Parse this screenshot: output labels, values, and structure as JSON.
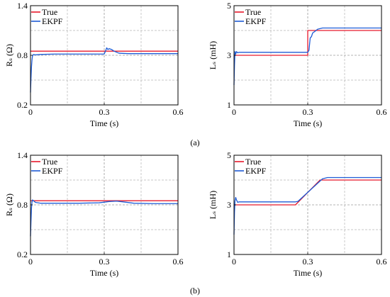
{
  "chart_data": [
    {
      "type": "line",
      "row": "a",
      "xlabel": "Time (s)",
      "ylabel": "Rₛ (Ω)",
      "xlim": [
        0,
        0.6
      ],
      "ylim": [
        0.2,
        1.4
      ],
      "xticks": [
        "0",
        "0.3",
        "0.6"
      ],
      "yticks": [
        "0.2",
        "0.8",
        "1.4"
      ],
      "grid": true,
      "legend_position": "top-left",
      "series": [
        {
          "name": "True",
          "color": "#e8192c",
          "x": [
            0,
            0.6
          ],
          "y": [
            0.85,
            0.85
          ]
        },
        {
          "name": "EKPF",
          "color": "#1f5cd6",
          "x": [
            0,
            0.002,
            0.004,
            0.006,
            0.008,
            0.012,
            0.02,
            0.04,
            0.1,
            0.2,
            0.3,
            0.305,
            0.31,
            0.315,
            0.32,
            0.33,
            0.34,
            0.36,
            0.4,
            0.5,
            0.6
          ],
          "y": [
            0.35,
            0.52,
            0.66,
            0.74,
            0.79,
            0.81,
            0.805,
            0.81,
            0.815,
            0.815,
            0.815,
            0.85,
            0.89,
            0.87,
            0.88,
            0.87,
            0.85,
            0.825,
            0.82,
            0.82,
            0.82
          ]
        }
      ]
    },
    {
      "type": "line",
      "row": "a",
      "xlabel": "Time (s)",
      "ylabel": "Lₛ (mH)",
      "xlim": [
        0,
        0.6
      ],
      "ylim": [
        1,
        5
      ],
      "xticks": [
        "0",
        "0.3",
        "0.6"
      ],
      "yticks": [
        "1",
        "3",
        "5"
      ],
      "grid": true,
      "legend_position": "top-left",
      "series": [
        {
          "name": "True",
          "color": "#e8192c",
          "x": [
            0,
            0.3,
            0.3,
            0.6
          ],
          "y": [
            3.0,
            3.0,
            4.0,
            4.0
          ]
        },
        {
          "name": "EKPF",
          "color": "#1f5cd6",
          "x": [
            0,
            0.002,
            0.004,
            0.007,
            0.01,
            0.015,
            0.02,
            0.04,
            0.1,
            0.2,
            0.3,
            0.305,
            0.31,
            0.315,
            0.32,
            0.33,
            0.34,
            0.36,
            0.4,
            0.5,
            0.6
          ],
          "y": [
            1.8,
            2.6,
            3.15,
            3.05,
            3.15,
            3.1,
            3.12,
            3.12,
            3.12,
            3.12,
            3.12,
            3.2,
            3.7,
            3.75,
            3.9,
            3.97,
            4.05,
            4.1,
            4.1,
            4.1,
            4.1
          ]
        }
      ]
    },
    {
      "type": "line",
      "row": "b",
      "xlabel": "Time (s)",
      "ylabel": "Rₛ (Ω)",
      "xlim": [
        0,
        0.6
      ],
      "ylim": [
        0.2,
        1.4
      ],
      "xticks": [
        "0",
        "0.3",
        "0.6"
      ],
      "yticks": [
        "0.2",
        "0.8",
        "1.4"
      ],
      "grid": true,
      "legend_position": "top-left",
      "series": [
        {
          "name": "True",
          "color": "#e8192c",
          "x": [
            0,
            0.6
          ],
          "y": [
            0.85,
            0.85
          ]
        },
        {
          "name": "EKPF",
          "color": "#1f5cd6",
          "x": [
            0,
            0.002,
            0.004,
            0.006,
            0.008,
            0.012,
            0.02,
            0.04,
            0.1,
            0.2,
            0.28,
            0.32,
            0.35,
            0.38,
            0.42,
            0.5,
            0.6
          ],
          "y": [
            0.42,
            0.6,
            0.76,
            0.83,
            0.86,
            0.85,
            0.83,
            0.82,
            0.82,
            0.82,
            0.825,
            0.84,
            0.845,
            0.835,
            0.82,
            0.815,
            0.815
          ]
        }
      ]
    },
    {
      "type": "line",
      "row": "b",
      "xlabel": "Time (s)",
      "ylabel": "Lₛ (mH)",
      "xlim": [
        0,
        0.6
      ],
      "ylim": [
        1,
        5
      ],
      "xticks": [
        "0",
        "0.3",
        "0.6"
      ],
      "yticks": [
        "1",
        "3",
        "5"
      ],
      "grid": true,
      "legend_position": "top-left",
      "series": [
        {
          "name": "True",
          "color": "#e8192c",
          "x": [
            0,
            0.25,
            0.35,
            0.6
          ],
          "y": [
            3.0,
            3.0,
            4.0,
            4.0
          ]
        },
        {
          "name": "EKPF",
          "color": "#1f5cd6",
          "x": [
            0,
            0.002,
            0.004,
            0.007,
            0.01,
            0.015,
            0.02,
            0.04,
            0.1,
            0.2,
            0.25,
            0.26,
            0.36,
            0.38,
            0.4,
            0.5,
            0.6
          ],
          "y": [
            1.8,
            2.7,
            3.15,
            3.3,
            3.2,
            3.1,
            3.12,
            3.12,
            3.12,
            3.12,
            3.12,
            3.14,
            4.05,
            4.1,
            4.1,
            4.1,
            4.1
          ]
        }
      ]
    }
  ],
  "panel_labels": [
    "(a)",
    "(b)"
  ]
}
